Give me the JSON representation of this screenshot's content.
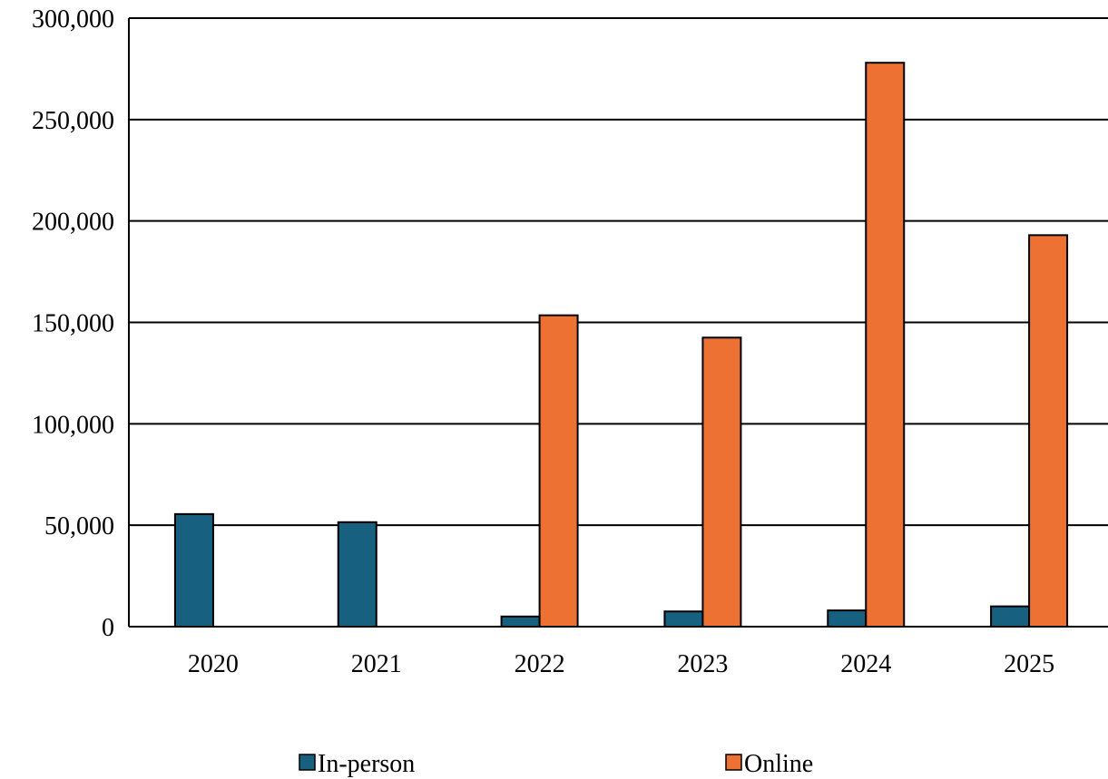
{
  "chart_data": {
    "type": "bar",
    "title": "",
    "xlabel": "",
    "ylabel": "",
    "categories": [
      "2020",
      "2021",
      "2022",
      "2023",
      "2024",
      "2025"
    ],
    "series": [
      {
        "name": "In-person",
        "color": "#17607f",
        "values": [
          55500,
          51500,
          5000,
          7500,
          8000,
          10000
        ]
      },
      {
        "name": "Online",
        "color": "#ec7133",
        "values": [
          0,
          0,
          153500,
          142500,
          278000,
          193000
        ]
      }
    ],
    "ylim": [
      0,
      300000
    ],
    "yticks": [
      "0",
      "50,000",
      "100,000",
      "150,000",
      "200,000",
      "250,000",
      "300,000"
    ],
    "ytick_values": [
      0,
      50000,
      100000,
      150000,
      200000,
      250000,
      300000
    ],
    "grid": true,
    "legend_position": "bottom"
  }
}
